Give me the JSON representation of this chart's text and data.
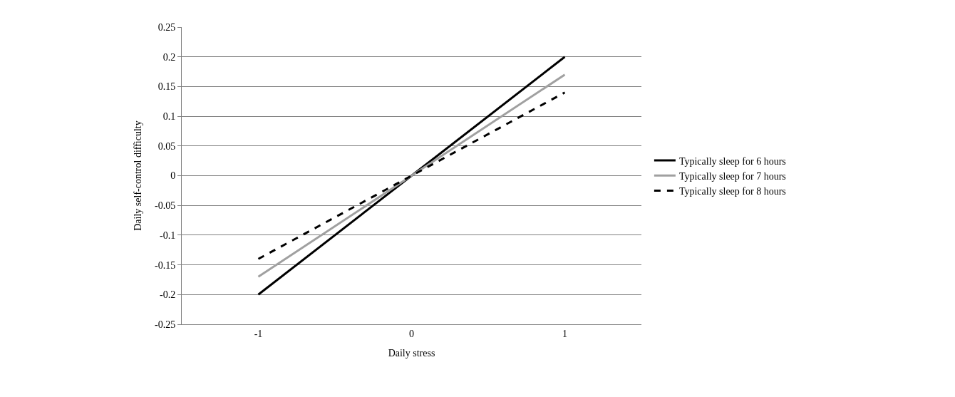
{
  "chart_data": {
    "type": "line",
    "xlabel": "Daily stress",
    "ylabel": "Daily self-control difficulty",
    "categories": [
      "-1",
      "0",
      "1"
    ],
    "series": [
      {
        "name": "Typically sleep for 6 hours",
        "color": "#000000",
        "line_style": "solid",
        "values": [
          -0.2,
          0,
          0.2
        ]
      },
      {
        "name": "Typically sleep for 7 hours",
        "color": "#a0a0a0",
        "line_style": "solid",
        "values": [
          -0.17,
          0,
          0.17
        ]
      },
      {
        "name": "Typically sleep for 8 hours",
        "color": "#000000",
        "line_style": "dashed",
        "values": [
          -0.14,
          0,
          0.14
        ]
      }
    ],
    "ylim": [
      -0.25,
      0.25
    ],
    "yticks": [
      -0.25,
      -0.2,
      -0.15,
      -0.1,
      -0.05,
      0,
      0.05,
      0.1,
      0.15,
      0.2,
      0.25
    ],
    "grid": "y",
    "legend": "right",
    "marker": "none"
  }
}
